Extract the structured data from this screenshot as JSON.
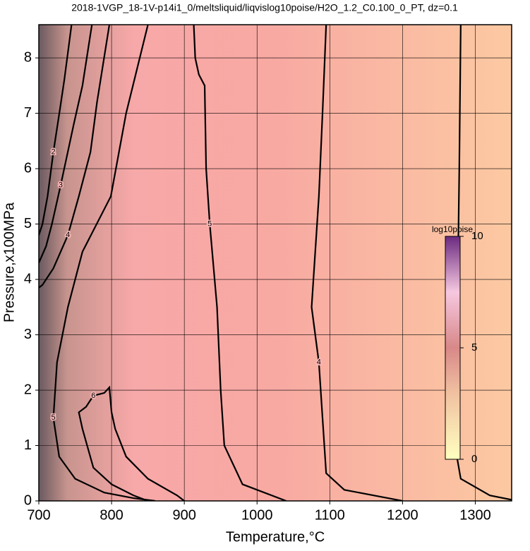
{
  "chart_data": {
    "type": "contour",
    "title": "2018-1VGP_18-1V-p14i1_0/meltsliquid/liqvislog10poise/H2O_1.2_C0.100_0_PT, dz=0.1",
    "x_label": "Temperature,°C",
    "y_label": "Pressure,x100MPa",
    "xlim": [
      700,
      1350
    ],
    "ylim": [
      0,
      8.6
    ],
    "xticks": [
      700,
      800,
      900,
      1000,
      1100,
      1200,
      1300
    ],
    "yticks": [
      0,
      1,
      2,
      3,
      4,
      5,
      6,
      7,
      8
    ],
    "grid": true,
    "contours": [
      {
        "level": 3,
        "x": [
          1280,
          1278,
          1275,
          1272,
          1280,
          1320,
          1350
        ],
        "y": [
          8.6,
          6,
          3,
          1,
          0.4,
          0.1,
          0.02
        ]
      },
      {
        "level": 4,
        "x": [
          1095,
          1090,
          1085,
          1080,
          1075,
          1085,
          1090,
          1095,
          1120,
          1180,
          1200
        ],
        "y": [
          8.6,
          7,
          5.5,
          4.5,
          3.5,
          2.5,
          1.5,
          0.5,
          0.2,
          0.05,
          0
        ]
      },
      {
        "level": 5,
        "x": [
          913,
          915,
          920,
          928,
          930,
          935,
          945,
          950,
          955,
          980,
          1040
        ],
        "y": [
          8.6,
          8,
          7.7,
          7.5,
          6,
          5,
          3.5,
          2,
          1,
          0.3,
          0
        ]
      },
      {
        "level": 5,
        "x": [
          850,
          820,
          799,
          760,
          740,
          725,
          720,
          728,
          750,
          790,
          830,
          860
        ],
        "y": [
          8.6,
          7,
          5.5,
          4.5,
          3.5,
          2.5,
          1.5,
          0.8,
          0.4,
          0.15,
          0.05,
          0
        ]
      },
      {
        "level": 6,
        "x": [
          900,
          890,
          850,
          820,
          805,
          800,
          797,
          790,
          775,
          765,
          755,
          760,
          775,
          800,
          830,
          850
        ],
        "y": [
          0,
          0.1,
          0.4,
          0.8,
          1.3,
          1.6,
          2.05,
          1.95,
          1.9,
          1.7,
          1.6,
          1.3,
          0.6,
          0.3,
          0.1,
          0
        ]
      },
      {
        "level": 4,
        "x": [
          797,
          780,
          771,
          755,
          740,
          720,
          705,
          700
        ],
        "y": [
          8.6,
          7.2,
          6.3,
          5.5,
          4.8,
          4.2,
          3.9,
          3.85
        ]
      },
      {
        "level": 3,
        "x": [
          773,
          760,
          748,
          730,
          718,
          710,
          700
        ],
        "y": [
          8.6,
          7.5,
          6.8,
          5.7,
          5,
          4.6,
          4.3
        ]
      },
      {
        "level": 2,
        "x": [
          745,
          735,
          729,
          720,
          712,
          705,
          700
        ],
        "y": [
          8.6,
          7.6,
          7.07,
          6.3,
          5.5,
          5,
          4.8
        ]
      }
    ],
    "colorbar": {
      "label": "log10poise",
      "lim": [
        0,
        10
      ],
      "ticks": [
        0,
        5,
        10
      ]
    }
  }
}
